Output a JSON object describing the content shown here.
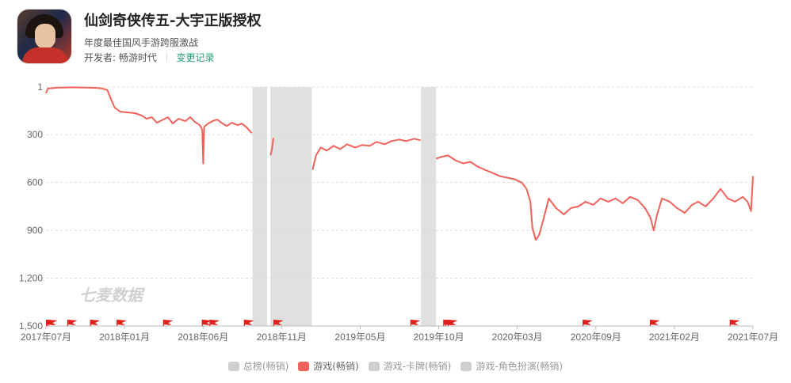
{
  "app": {
    "title": "仙剑奇侠传五-大宇正版授权",
    "subtitle": "年度最佳国风手游跨服激战",
    "developer_label": "开发者:",
    "developer": "畅游时代",
    "changelog_link": "变更记录",
    "icon_name": "game-app-icon"
  },
  "watermark": "七麦数据",
  "colors": {
    "series": "#f0625a",
    "gap": "#e0e0e0",
    "flag": "#e0201c",
    "accent": "#2a9d6f"
  },
  "legend": [
    {
      "label": "总榜(畅销)",
      "color": "#cfcfcf",
      "active": false
    },
    {
      "label": "游戏(畅销)",
      "color": "#f0625a",
      "active": true
    },
    {
      "label": "游戏-卡牌(畅销)",
      "color": "#cfcfcf",
      "active": false
    },
    {
      "label": "游戏-角色扮演(畅销)",
      "color": "#cfcfcf",
      "active": false
    }
  ],
  "chart_data": {
    "type": "line",
    "ylim": [
      1,
      1500
    ],
    "y_inverted": true,
    "y_ticks": [
      "1",
      "300",
      "600",
      "900",
      "1,200",
      "1,500"
    ],
    "y_tick_values": [
      1,
      300,
      600,
      900,
      1200,
      1500
    ],
    "x_ticks": [
      "2017年07月",
      "2018年01月",
      "2018年06月",
      "2018年11月",
      "2019年05月",
      "2019年10月",
      "2020年03月",
      "2020年09月",
      "2021年02月",
      "2021年07月"
    ],
    "x_range": [
      "2017-07-01",
      "2021-07-01"
    ],
    "gaps": [
      [
        "2018-09-01",
        "2018-10-01"
      ],
      [
        "2018-10-08",
        "2019-01-01"
      ],
      [
        "2019-08-15",
        "2019-09-15"
      ]
    ],
    "event_flags": [
      "2017-07-02",
      "2017-07-05",
      "2017-08-15",
      "2017-10-01",
      "2017-11-25",
      "2018-03-01",
      "2018-05-20",
      "2018-06-05",
      "2018-08-15",
      "2018-10-15",
      "2019-07-25",
      "2019-10-01",
      "2019-10-05",
      "2019-10-10",
      "2020-07-15",
      "2020-12-01",
      "2021-05-15"
    ],
    "series": [
      {
        "name": "游戏(畅销)",
        "points": [
          [
            "2017-07-01",
            40
          ],
          [
            "2017-07-05",
            10
          ],
          [
            "2017-07-15",
            8
          ],
          [
            "2017-07-25",
            5
          ],
          [
            "2017-08-10",
            4
          ],
          [
            "2017-08-25",
            3
          ],
          [
            "2017-09-10",
            4
          ],
          [
            "2017-09-25",
            5
          ],
          [
            "2017-10-10",
            6
          ],
          [
            "2017-10-25",
            10
          ],
          [
            "2017-11-05",
            20
          ],
          [
            "2017-11-12",
            75
          ],
          [
            "2017-11-20",
            130
          ],
          [
            "2017-12-01",
            155
          ],
          [
            "2017-12-15",
            160
          ],
          [
            "2018-01-01",
            165
          ],
          [
            "2018-01-15",
            180
          ],
          [
            "2018-01-25",
            200
          ],
          [
            "2018-02-05",
            190
          ],
          [
            "2018-02-15",
            225
          ],
          [
            "2018-02-25",
            210
          ],
          [
            "2018-03-10",
            190
          ],
          [
            "2018-03-20",
            230
          ],
          [
            "2018-04-01",
            200
          ],
          [
            "2018-04-15",
            215
          ],
          [
            "2018-04-25",
            190
          ],
          [
            "2018-05-05",
            220
          ],
          [
            "2018-05-15",
            240
          ],
          [
            "2018-05-20",
            270
          ],
          [
            "2018-05-22",
            480
          ],
          [
            "2018-05-24",
            250
          ],
          [
            "2018-06-01",
            230
          ],
          [
            "2018-06-10",
            215
          ],
          [
            "2018-06-20",
            205
          ],
          [
            "2018-07-01",
            230
          ],
          [
            "2018-07-10",
            245
          ],
          [
            "2018-07-20",
            225
          ],
          [
            "2018-08-01",
            240
          ],
          [
            "2018-08-10",
            230
          ],
          [
            "2018-08-20",
            255
          ],
          [
            "2018-08-30",
            290
          ],
          null,
          [
            "2018-10-08",
            430
          ],
          [
            "2018-10-11",
            390
          ],
          [
            "2018-10-14",
            320
          ],
          null,
          [
            "2019-01-03",
            520
          ],
          [
            "2019-01-10",
            430
          ],
          [
            "2019-01-20",
            380
          ],
          [
            "2019-02-01",
            400
          ],
          [
            "2019-02-15",
            370
          ],
          [
            "2019-03-01",
            390
          ],
          [
            "2019-03-15",
            360
          ],
          [
            "2019-04-01",
            380
          ],
          [
            "2019-04-15",
            365
          ],
          [
            "2019-05-01",
            370
          ],
          [
            "2019-05-15",
            345
          ],
          [
            "2019-06-01",
            360
          ],
          [
            "2019-06-15",
            340
          ],
          [
            "2019-07-01",
            330
          ],
          [
            "2019-07-15",
            340
          ],
          [
            "2019-08-01",
            325
          ],
          [
            "2019-08-14",
            335
          ],
          null,
          [
            "2019-09-15",
            450
          ],
          [
            "2019-09-25",
            440
          ],
          [
            "2019-10-10",
            430
          ],
          [
            "2019-10-25",
            460
          ],
          [
            "2019-11-10",
            480
          ],
          [
            "2019-11-25",
            470
          ],
          [
            "2019-12-10",
            500
          ],
          [
            "2019-12-25",
            520
          ],
          [
            "2020-01-10",
            540
          ],
          [
            "2020-01-25",
            560
          ],
          [
            "2020-02-10",
            570
          ],
          [
            "2020-02-25",
            580
          ],
          [
            "2020-03-10",
            600
          ],
          [
            "2020-03-20",
            640
          ],
          [
            "2020-03-28",
            720
          ],
          [
            "2020-04-01",
            880
          ],
          [
            "2020-04-08",
            960
          ],
          [
            "2020-04-15",
            930
          ],
          [
            "2020-04-25",
            820
          ],
          [
            "2020-05-05",
            700
          ],
          [
            "2020-05-20",
            760
          ],
          [
            "2020-06-05",
            800
          ],
          [
            "2020-06-20",
            760
          ],
          [
            "2020-07-05",
            750
          ],
          [
            "2020-07-20",
            720
          ],
          [
            "2020-08-05",
            740
          ],
          [
            "2020-08-20",
            700
          ],
          [
            "2020-09-05",
            720
          ],
          [
            "2020-09-20",
            700
          ],
          [
            "2020-10-05",
            730
          ],
          [
            "2020-10-20",
            690
          ],
          [
            "2020-11-05",
            710
          ],
          [
            "2020-11-20",
            760
          ],
          [
            "2020-12-01",
            820
          ],
          [
            "2020-12-08",
            900
          ],
          [
            "2020-12-15",
            800
          ],
          [
            "2020-12-25",
            700
          ],
          [
            "2021-01-10",
            720
          ],
          [
            "2021-01-25",
            760
          ],
          [
            "2021-02-10",
            790
          ],
          [
            "2021-02-25",
            740
          ],
          [
            "2021-03-10",
            720
          ],
          [
            "2021-03-25",
            750
          ],
          [
            "2021-04-10",
            700
          ],
          [
            "2021-04-25",
            640
          ],
          [
            "2021-05-10",
            700
          ],
          [
            "2021-05-25",
            720
          ],
          [
            "2021-06-10",
            690
          ],
          [
            "2021-06-20",
            720
          ],
          [
            "2021-06-27",
            780
          ],
          [
            "2021-07-01",
            560
          ]
        ]
      }
    ]
  }
}
